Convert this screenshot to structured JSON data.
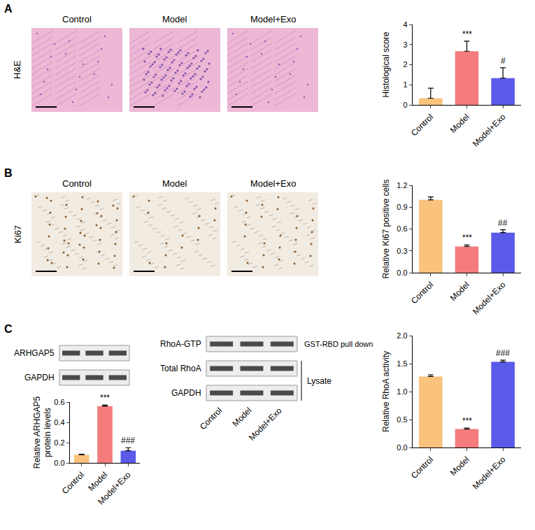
{
  "panels": {
    "A": {
      "letter": "A",
      "row_label": "H&E",
      "columns": [
        "Control",
        "Model",
        "Model+Exo"
      ]
    },
    "B": {
      "letter": "B",
      "row_label": "Ki67",
      "columns": [
        "Control",
        "Model",
        "Model+Exo"
      ]
    },
    "C": {
      "letter": "C",
      "blot_left": {
        "rows": [
          "ARHGAP5",
          "GAPDH"
        ]
      },
      "blot_right": {
        "rows": [
          "RhoA-GTP",
          "Total RhoA",
          "GAPDH"
        ],
        "pull_down_label": "GST-RBD pull down",
        "lysate_label": "Lysate",
        "lanes": [
          "Control",
          "Model",
          "Model+Exo"
        ]
      }
    }
  },
  "chart_data": [
    {
      "type": "bar",
      "y_label": "Histological score",
      "categories": [
        "Control",
        "Model",
        "Model+Exo"
      ],
      "values": [
        0.33,
        2.67,
        1.33
      ],
      "errors": [
        0.5,
        0.5,
        0.52
      ],
      "colors": [
        "#F9C27D",
        "#F47C7C",
        "#5A5AE8"
      ],
      "ylim": [
        0,
        4
      ],
      "yticks": [
        0,
        1,
        2,
        3,
        4
      ],
      "grid": false,
      "annotations": [
        {
          "category": "Model",
          "text": "***"
        },
        {
          "category": "Model+Exo",
          "text": "#"
        }
      ]
    },
    {
      "type": "bar",
      "y_label": "Relative Ki67 positive cells",
      "categories": [
        "Control",
        "Model",
        "Model+Exo"
      ],
      "values": [
        1.0,
        0.36,
        0.55
      ],
      "errors": [
        0.04,
        0.02,
        0.04
      ],
      "colors": [
        "#F9C27D",
        "#F47C7C",
        "#5A5AE8"
      ],
      "ylim": [
        0,
        1.2
      ],
      "yticks": [
        {
          "value": 0,
          "label": "0.0"
        },
        0.3,
        0.6,
        0.9,
        1.2
      ],
      "grid": false,
      "annotations": [
        {
          "category": "Model",
          "text": "***"
        },
        {
          "category": "Model+Exo",
          "text": "##"
        }
      ]
    },
    {
      "type": "bar",
      "y_label": "Relative ARHGAP5\nprotein levels",
      "categories": [
        "Control",
        "Model",
        "Model+Exo"
      ],
      "values": [
        0.08,
        0.56,
        0.12
      ],
      "errors": [
        0.005,
        0.01,
        0.03
      ],
      "colors": [
        "#F9C27D",
        "#F47C7C",
        "#5A5AE8"
      ],
      "ylim": [
        0,
        0.6
      ],
      "yticks": [
        {
          "value": 0,
          "label": "0.0"
        },
        0.2,
        0.4,
        0.6
      ],
      "grid": false,
      "annotations": [
        {
          "category": "Model",
          "text": "***"
        },
        {
          "category": "Model+Exo",
          "text": "###"
        }
      ]
    },
    {
      "type": "bar",
      "y_label": "Relative RhoA activity",
      "categories": [
        "Control",
        "Model",
        "Model+Exo"
      ],
      "values": [
        1.27,
        0.33,
        1.53
      ],
      "errors": [
        0.03,
        0.02,
        0.03
      ],
      "colors": [
        "#F9C27D",
        "#F47C7C",
        "#5A5AE8"
      ],
      "ylim": [
        0,
        2
      ],
      "yticks": [
        {
          "value": 0,
          "label": "0.0"
        },
        0.5,
        {
          "value": 1,
          "label": "1.0"
        },
        1.5,
        {
          "value": 2,
          "label": "2.0"
        }
      ],
      "grid": false,
      "annotations": [
        {
          "category": "Model",
          "text": "***"
        },
        {
          "category": "Model+Exo",
          "text": "###"
        }
      ]
    }
  ]
}
